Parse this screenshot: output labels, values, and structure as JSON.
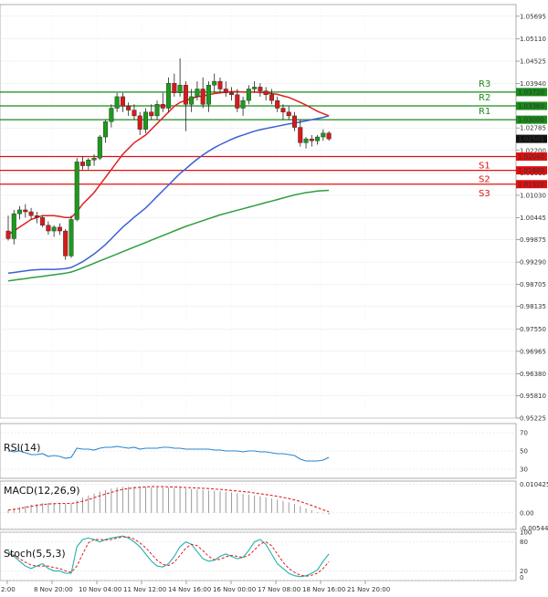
{
  "chart_data": {
    "type": "line",
    "main": {
      "ylim": [
        0.95225,
        1.06
      ],
      "y_ticks": [
        "1.05695",
        "1.05110",
        "1.04525",
        "1.03940",
        "1.03355",
        "1.02785",
        "1.02200",
        "1.01615",
        "1.01030",
        "1.00445",
        "0.99875",
        "0.99290",
        "0.98705",
        "0.98135",
        "0.97550",
        "0.96965",
        "0.96380",
        "0.95810",
        "0.95225"
      ],
      "current_price": {
        "value": 1.02501,
        "label": "1.02501"
      },
      "levels": [
        {
          "name": "R3",
          "value": 1.0372,
          "label": "1.03720",
          "color": "#1a8a1a"
        },
        {
          "name": "R2",
          "value": 1.0336,
          "label": "1.03360",
          "color": "#1a8a1a"
        },
        {
          "name": "R1",
          "value": 1.03,
          "label": "1.03000",
          "color": "#1a8a1a"
        },
        {
          "name": "S1",
          "value": 1.0204,
          "label": "1.02040",
          "color": "#e01010"
        },
        {
          "name": "S2",
          "value": 1.0168,
          "label": "1.01680",
          "color": "#e01010"
        },
        {
          "name": "S3",
          "value": 1.0132,
          "label": "1.01320",
          "color": "#e01010"
        }
      ],
      "candles": [
        [
          1.001,
          1.005,
          0.9985,
          0.999
        ],
        [
          0.999,
          1.0065,
          0.9975,
          1.0055
        ],
        [
          1.0055,
          1.0075,
          1.004,
          1.0065
        ],
        [
          1.0065,
          1.008,
          1.0045,
          1.006
        ],
        [
          1.006,
          1.007,
          1.004,
          1.005
        ],
        [
          1.005,
          1.006,
          1.003,
          1.0045
        ],
        [
          1.0045,
          1.005,
          1.002,
          1.0025
        ],
        [
          1.0025,
          1.0035,
          1.0,
          1.001
        ],
        [
          1.001,
          1.0025,
          0.9995,
          1.002
        ],
        [
          1.002,
          1.003,
          1.0,
          1.001
        ],
        [
          1.001,
          1.0015,
          0.9935,
          0.9945
        ],
        [
          0.9945,
          1.005,
          0.994,
          1.004
        ],
        [
          1.004,
          1.02,
          1.0035,
          1.019
        ],
        [
          1.019,
          1.0205,
          1.017,
          1.018
        ],
        [
          1.018,
          1.02,
          1.017,
          1.0195
        ],
        [
          1.0195,
          1.021,
          1.018,
          1.02
        ],
        [
          1.02,
          1.026,
          1.0195,
          1.0255
        ],
        [
          1.0255,
          1.03,
          1.024,
          1.0295
        ],
        [
          1.0295,
          1.034,
          1.028,
          1.033
        ],
        [
          1.033,
          1.037,
          1.032,
          1.036
        ],
        [
          1.036,
          1.037,
          1.032,
          1.0335
        ],
        [
          1.0335,
          1.0345,
          1.031,
          1.0325
        ],
        [
          1.0325,
          1.034,
          1.03,
          1.031
        ],
        [
          1.031,
          1.032,
          1.026,
          1.0275
        ],
        [
          1.0275,
          1.033,
          1.0265,
          1.032
        ],
        [
          1.032,
          1.034,
          1.03,
          1.031
        ],
        [
          1.031,
          1.035,
          1.03,
          1.034
        ],
        [
          1.034,
          1.037,
          1.032,
          1.033
        ],
        [
          1.033,
          1.041,
          1.032,
          1.0395
        ],
        [
          1.0395,
          1.042,
          1.036,
          1.037
        ],
        [
          1.037,
          1.046,
          1.036,
          1.039
        ],
        [
          1.039,
          1.04,
          1.027,
          1.034
        ],
        [
          1.034,
          1.038,
          1.032,
          1.036
        ],
        [
          1.036,
          1.04,
          1.035,
          1.038
        ],
        [
          1.038,
          1.041,
          1.033,
          1.034
        ],
        [
          1.034,
          1.04,
          1.032,
          1.039
        ],
        [
          1.039,
          1.042,
          1.037,
          1.04
        ],
        [
          1.04,
          1.041,
          1.037,
          1.038
        ],
        [
          1.038,
          1.04,
          1.036,
          1.037
        ],
        [
          1.037,
          1.0385,
          1.035,
          1.0365
        ],
        [
          1.0365,
          1.038,
          1.032,
          1.033
        ],
        [
          1.033,
          1.036,
          1.031,
          1.035
        ],
        [
          1.035,
          1.039,
          1.034,
          1.038
        ],
        [
          1.038,
          1.04,
          1.037,
          1.0385
        ],
        [
          1.0385,
          1.0395,
          1.036,
          1.0375
        ],
        [
          1.0375,
          1.0385,
          1.035,
          1.0365
        ],
        [
          1.0365,
          1.038,
          1.034,
          1.035
        ],
        [
          1.035,
          1.036,
          1.032,
          1.033
        ],
        [
          1.033,
          1.034,
          1.03,
          1.032
        ],
        [
          1.032,
          1.0335,
          1.03,
          1.031
        ],
        [
          1.031,
          1.032,
          1.027,
          1.028
        ],
        [
          1.028,
          1.03,
          1.023,
          1.024
        ],
        [
          1.024,
          1.0255,
          1.0225,
          1.025
        ],
        [
          1.025,
          1.026,
          1.023,
          1.0245
        ],
        [
          1.0245,
          1.026,
          1.0235,
          1.0255
        ],
        [
          1.0255,
          1.0275,
          1.0245,
          1.0265
        ],
        [
          1.0265,
          1.027,
          1.0245,
          1.025
        ]
      ],
      "ma_red": [
        1.0,
        1.001,
        1.002,
        1.003,
        1.004,
        1.0045,
        1.005,
        1.005,
        1.005,
        1.0048,
        1.0045,
        1.0045,
        1.006,
        1.008,
        1.0095,
        1.011,
        1.013,
        1.015,
        1.017,
        1.019,
        1.021,
        1.0225,
        1.024,
        1.025,
        1.026,
        1.0275,
        1.029,
        1.0305,
        1.032,
        1.0335,
        1.0345,
        1.035,
        1.0355,
        1.036,
        1.0362,
        1.0365,
        1.0368,
        1.037,
        1.0372,
        1.0373,
        1.0373,
        1.0372,
        1.0372,
        1.0372,
        1.0371,
        1.037,
        1.0368,
        1.0366,
        1.0362,
        1.0358,
        1.0352,
        1.0345,
        1.0338,
        1.033,
        1.0322,
        1.0316,
        1.031
      ],
      "ma_blue": [
        0.99,
        0.9902,
        0.9904,
        0.9906,
        0.9908,
        0.9909,
        0.991,
        0.991,
        0.991,
        0.9911,
        0.9912,
        0.9915,
        0.9922,
        0.993,
        0.994,
        0.995,
        0.9962,
        0.9975,
        0.999,
        1.0005,
        1.002,
        1.0033,
        1.0046,
        1.0058,
        1.007,
        1.0085,
        1.01,
        1.0115,
        1.013,
        1.0145,
        1.016,
        1.0172,
        1.0185,
        1.0197,
        1.0208,
        1.0218,
        1.0227,
        1.0235,
        1.0242,
        1.0249,
        1.0255,
        1.026,
        1.0265,
        1.027,
        1.0274,
        1.0277,
        1.028,
        1.0283,
        1.0286,
        1.0289,
        1.0291,
        1.0294,
        1.0297,
        1.03,
        1.0303,
        1.0306,
        1.031
      ],
      "ma_green": [
        0.988,
        0.9882,
        0.9884,
        0.9886,
        0.9888,
        0.989,
        0.9892,
        0.9894,
        0.9896,
        0.9898,
        0.99,
        0.9903,
        0.9908,
        0.9914,
        0.992,
        0.9926,
        0.9932,
        0.9938,
        0.9944,
        0.995,
        0.9956,
        0.9962,
        0.9968,
        0.9974,
        0.998,
        0.9986,
        0.9992,
        0.9998,
        1.0004,
        1.001,
        1.0016,
        1.0022,
        1.0027,
        1.0032,
        1.0037,
        1.0042,
        1.0047,
        1.0052,
        1.0056,
        1.006,
        1.0064,
        1.0068,
        1.0072,
        1.0076,
        1.008,
        1.0084,
        1.0088,
        1.0092,
        1.0096,
        1.01,
        1.0104,
        1.0107,
        1.011,
        1.0112,
        1.0114,
        1.0115,
        1.0116
      ]
    },
    "x_tick_labels": [
      "2:00",
      "8 Nov 20:00",
      "10 Nov 04:00",
      "11 Nov 12:00",
      "14 Nov 16:00",
      "16 Nov 00:00",
      "17 Nov 08:00",
      "18 Nov 16:00",
      "21 Nov 20:00"
    ],
    "rsi": {
      "title": "RSI(14)",
      "ylim": [
        20,
        80
      ],
      "ticks": [
        "70",
        "50",
        "30"
      ],
      "values": [
        50,
        49,
        50,
        48,
        46,
        46,
        47,
        44,
        45,
        44,
        42,
        43,
        53,
        52,
        52,
        51,
        53,
        54,
        54,
        55,
        54,
        53,
        54,
        52,
        53,
        53,
        53,
        54,
        54,
        53,
        53,
        52,
        52,
        52,
        52,
        52,
        51,
        51,
        50,
        50,
        50,
        49,
        50,
        50,
        49,
        49,
        48,
        47,
        47,
        46,
        45,
        41,
        39,
        39,
        39,
        40,
        43
      ]
    },
    "macd": {
      "title": "MACD(12,26,9)",
      "ylim": [
        -0.006,
        0.0115
      ],
      "ticks": [
        "0.010425",
        "0.00",
        "-0.005445"
      ],
      "hist": [
        0.001,
        0.0015,
        0.002,
        0.0025,
        0.003,
        0.0033,
        0.0035,
        0.0036,
        0.0036,
        0.0035,
        0.0032,
        0.0032,
        0.0045,
        0.0055,
        0.0063,
        0.007,
        0.0077,
        0.0083,
        0.0088,
        0.0092,
        0.0094,
        0.0095,
        0.0095,
        0.0094,
        0.0093,
        0.0092,
        0.0092,
        0.0091,
        0.0091,
        0.009,
        0.009,
        0.0088,
        0.0086,
        0.0085,
        0.0083,
        0.0081,
        0.008,
        0.0078,
        0.0076,
        0.0074,
        0.0071,
        0.0068,
        0.0066,
        0.0063,
        0.006,
        0.0056,
        0.0052,
        0.0048,
        0.0043,
        0.0038,
        0.0032,
        0.0024,
        0.0016,
        0.0009,
        0.0003,
        -0.0002,
        -0.0006
      ],
      "signal": [
        0.001,
        0.0013,
        0.0016,
        0.002,
        0.0024,
        0.0027,
        0.003,
        0.0032,
        0.0033,
        0.0034,
        0.0034,
        0.0034,
        0.0037,
        0.0042,
        0.0048,
        0.0055,
        0.0062,
        0.0068,
        0.0074,
        0.008,
        0.0085,
        0.0088,
        0.0091,
        0.0093,
        0.0094,
        0.0095,
        0.0095,
        0.0095,
        0.0094,
        0.0094,
        0.0093,
        0.0092,
        0.0091,
        0.009,
        0.0089,
        0.0088,
        0.0086,
        0.0085,
        0.0083,
        0.0081,
        0.0079,
        0.0077,
        0.0075,
        0.0072,
        0.0069,
        0.0066,
        0.0063,
        0.006,
        0.0056,
        0.0052,
        0.0047,
        0.0041,
        0.0034,
        0.0027,
        0.0019,
        0.0011,
        0.0004
      ]
    },
    "stoch": {
      "title": "Stoch(5,5,3)",
      "ylim": [
        0,
        100
      ],
      "ticks": [
        "100",
        "80",
        "20",
        "0"
      ],
      "k": [
        60,
        50,
        40,
        30,
        25,
        30,
        35,
        25,
        20,
        20,
        15,
        15,
        70,
        85,
        88,
        85,
        80,
        85,
        88,
        90,
        92,
        88,
        80,
        70,
        55,
        40,
        30,
        28,
        35,
        50,
        70,
        80,
        75,
        60,
        45,
        40,
        42,
        50,
        55,
        50,
        45,
        48,
        62,
        80,
        85,
        75,
        55,
        35,
        25,
        15,
        10,
        8,
        10,
        15,
        22,
        40,
        55
      ],
      "d": [
        55,
        52,
        45,
        38,
        32,
        30,
        30,
        30,
        27,
        25,
        20,
        17,
        30,
        55,
        78,
        85,
        85,
        84,
        85,
        88,
        90,
        90,
        86,
        78,
        68,
        55,
        42,
        33,
        31,
        38,
        52,
        67,
        75,
        72,
        62,
        50,
        43,
        44,
        49,
        52,
        50,
        48,
        52,
        63,
        76,
        80,
        72,
        55,
        38,
        25,
        17,
        11,
        9,
        11,
        15,
        25,
        39
      ]
    }
  }
}
